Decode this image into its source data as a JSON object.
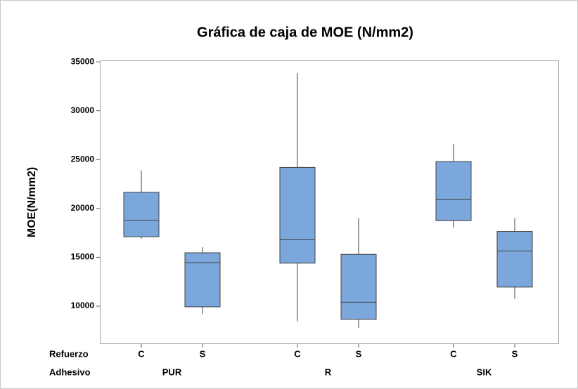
{
  "chart_data": {
    "type": "box",
    "title": "Gráfica de caja de MOE (N/mm2)",
    "y_label": "MOE(N/mm2)",
    "factors": [
      {
        "name": "Refuerzo",
        "labels": [
          "C",
          "S",
          "C",
          "S",
          "C",
          "S"
        ]
      },
      {
        "name": "Adhesivo",
        "labels": [
          "PUR",
          "R",
          "SIK"
        ]
      }
    ],
    "color": "#7ba7dc",
    "min": [
      16900,
      9200,
      8450,
      7750,
      18050,
      10750
    ],
    "q1": [
      17100,
      9930,
      14400,
      8650,
      18750,
      11950
    ],
    "median": [
      18800,
      14450,
      16800,
      10400,
      20900,
      15650
    ],
    "q3": [
      21650,
      15460,
      24200,
      15300,
      24800,
      17650
    ],
    "max": [
      23900,
      16030,
      33850,
      19000,
      26600,
      19000
    ],
    "ylim": [
      6120,
      35150
    ],
    "yticks": [
      10000,
      15000,
      20000,
      25000,
      30000,
      35000
    ]
  }
}
